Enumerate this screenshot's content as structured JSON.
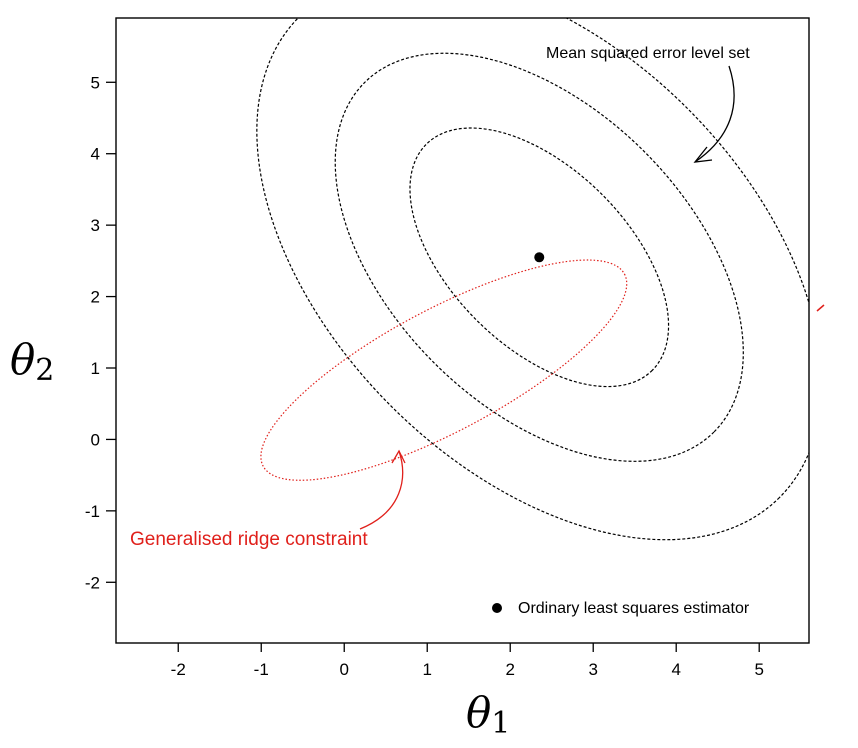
{
  "chart_data": {
    "type": "scatter",
    "xlabel": {
      "symbol": "θ",
      "sub": "1"
    },
    "ylabel": {
      "symbol": "θ",
      "sub": "2"
    },
    "xlim": [
      -2.75,
      5.6
    ],
    "ylim": [
      -2.85,
      5.9
    ],
    "xticks": [
      {
        "value": -2,
        "label": "-2"
      },
      {
        "value": -1,
        "label": "-1"
      },
      {
        "value": 0,
        "label": "0"
      },
      {
        "value": 1,
        "label": "1"
      },
      {
        "value": 2,
        "label": "2"
      },
      {
        "value": 3,
        "label": "3"
      },
      {
        "value": 4,
        "label": "4"
      },
      {
        "value": 5,
        "label": "5"
      }
    ],
    "yticks": [
      {
        "value": -2,
        "label": "-2"
      },
      {
        "value": -1,
        "label": "-1"
      },
      {
        "value": 0,
        "label": "0"
      },
      {
        "value": 1,
        "label": "1"
      },
      {
        "value": 2,
        "label": "2"
      },
      {
        "value": 3,
        "label": "3"
      },
      {
        "value": 4,
        "label": "4"
      },
      {
        "value": 5,
        "label": "5"
      }
    ],
    "ols_estimate": {
      "x": 2.35,
      "y": 2.55
    },
    "mse_level_sets": [
      {
        "cx": 2.35,
        "cy": 2.55,
        "rx": 2.07,
        "ry": 1.15,
        "angle": -45
      },
      {
        "cx": 2.35,
        "cy": 2.55,
        "rx": 3.2,
        "ry": 1.93,
        "angle": -45
      },
      {
        "cx": 2.35,
        "cy": 2.55,
        "rx": 4.4,
        "ry": 2.72,
        "angle": -45
      }
    ],
    "ridge_constraint": {
      "cx": 1.2,
      "cy": 0.97,
      "rx": 2.65,
      "ry": 0.79,
      "angle": 28
    },
    "annotations": {
      "mse": "Mean squared error level set",
      "ridge": "Generalised  ridge constraint",
      "legend_ols": "Ordinary least squares estimator"
    },
    "legend_position": "bottom-right",
    "colors": {
      "mse": "#000000",
      "ridge": "#e0201b",
      "axis": "#000000"
    }
  }
}
